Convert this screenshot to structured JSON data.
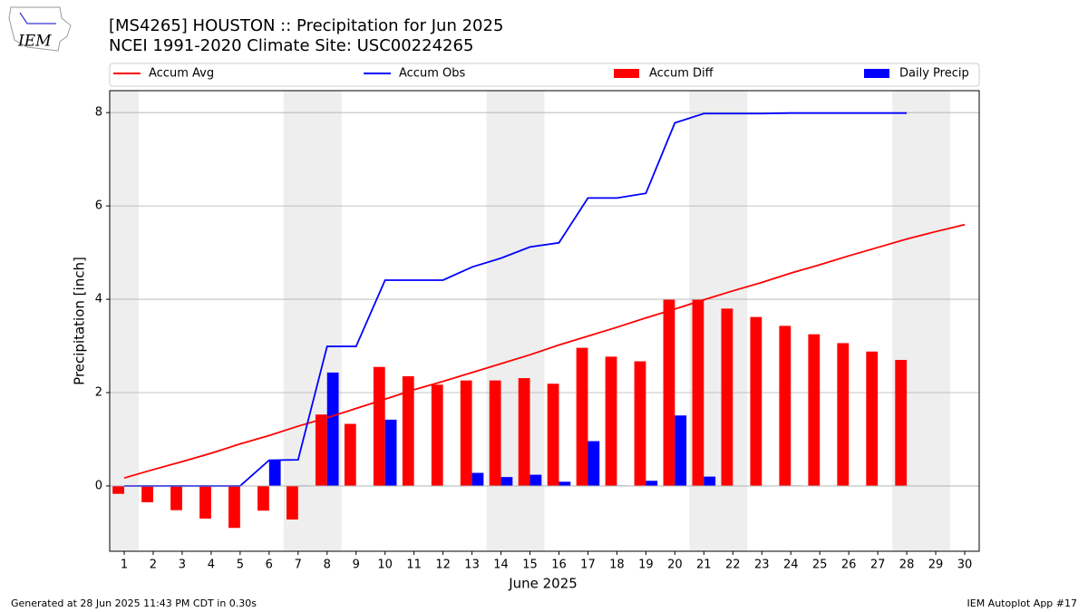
{
  "logo_text": "IEM",
  "chart_data": {
    "type": "combo",
    "title": "[MS4265] HOUSTON :: Precipitation for Jun 2025",
    "subtitle": "NCEI 1991-2020 Climate Site: USC00224265",
    "x_label": "June 2025",
    "y_label": "Precipitation [inch]",
    "x": [
      1,
      2,
      3,
      4,
      5,
      6,
      7,
      8,
      9,
      10,
      11,
      12,
      13,
      14,
      15,
      16,
      17,
      18,
      19,
      20,
      21,
      22,
      23,
      24,
      25,
      26,
      27,
      28,
      29,
      30
    ],
    "xlim": [
      0.5,
      30.5
    ],
    "xticks": [
      1,
      2,
      3,
      4,
      5,
      6,
      7,
      8,
      9,
      10,
      11,
      12,
      13,
      14,
      15,
      16,
      17,
      18,
      19,
      20,
      21,
      22,
      23,
      24,
      25,
      26,
      27,
      28,
      29,
      30
    ],
    "ylim": [
      -1.4,
      8.47
    ],
    "yticks": [
      0,
      2,
      4,
      6,
      8
    ],
    "grid": true,
    "shaded_days": [
      1,
      7,
      8,
      14,
      15,
      21,
      22,
      28,
      29
    ],
    "series": [
      {
        "name": "Accum Avg",
        "type": "line",
        "color": "#ff0000",
        "values": [
          0.17,
          0.35,
          0.52,
          0.7,
          0.9,
          1.08,
          1.28,
          1.46,
          1.66,
          1.86,
          2.06,
          2.24,
          2.43,
          2.62,
          2.81,
          3.02,
          3.21,
          3.4,
          3.6,
          3.79,
          3.99,
          4.18,
          4.36,
          4.56,
          4.74,
          4.93,
          5.11,
          5.29,
          5.45,
          5.6
        ]
      },
      {
        "name": "Accum Obs",
        "type": "line",
        "color": "#0000ff",
        "values": [
          0,
          0,
          0,
          0,
          0,
          0.55,
          0.56,
          2.99,
          2.99,
          4.41,
          4.41,
          4.41,
          4.69,
          4.88,
          5.12,
          5.21,
          6.17,
          6.17,
          6.27,
          7.78,
          7.98,
          7.98,
          7.98,
          7.99,
          7.99,
          7.99,
          7.99,
          7.99,
          null,
          null
        ]
      },
      {
        "name": "Accum Diff",
        "type": "bar",
        "color": "#ff0000",
        "values": [
          -0.17,
          -0.35,
          -0.52,
          -0.7,
          -0.9,
          -0.53,
          -0.72,
          1.53,
          1.33,
          2.55,
          2.35,
          2.17,
          2.26,
          2.26,
          2.31,
          2.19,
          2.96,
          2.77,
          2.67,
          3.99,
          3.99,
          3.8,
          3.62,
          3.43,
          3.25,
          3.06,
          2.88,
          2.7,
          null,
          null
        ]
      },
      {
        "name": "Daily Precip",
        "type": "bar",
        "color": "#0000ff",
        "values": [
          0,
          0,
          0,
          0,
          0,
          0.55,
          0.01,
          2.43,
          0,
          1.42,
          0,
          0,
          0.28,
          0.19,
          0.24,
          0.09,
          0.96,
          0.01,
          0.11,
          1.51,
          0.2,
          0,
          0,
          0.01,
          0,
          0,
          0,
          0,
          null,
          null
        ]
      }
    ],
    "footer_left": "Generated at 28 Jun 2025 11:43 PM CDT in 0.30s",
    "footer_right": "IEM Autoplot App #17"
  }
}
